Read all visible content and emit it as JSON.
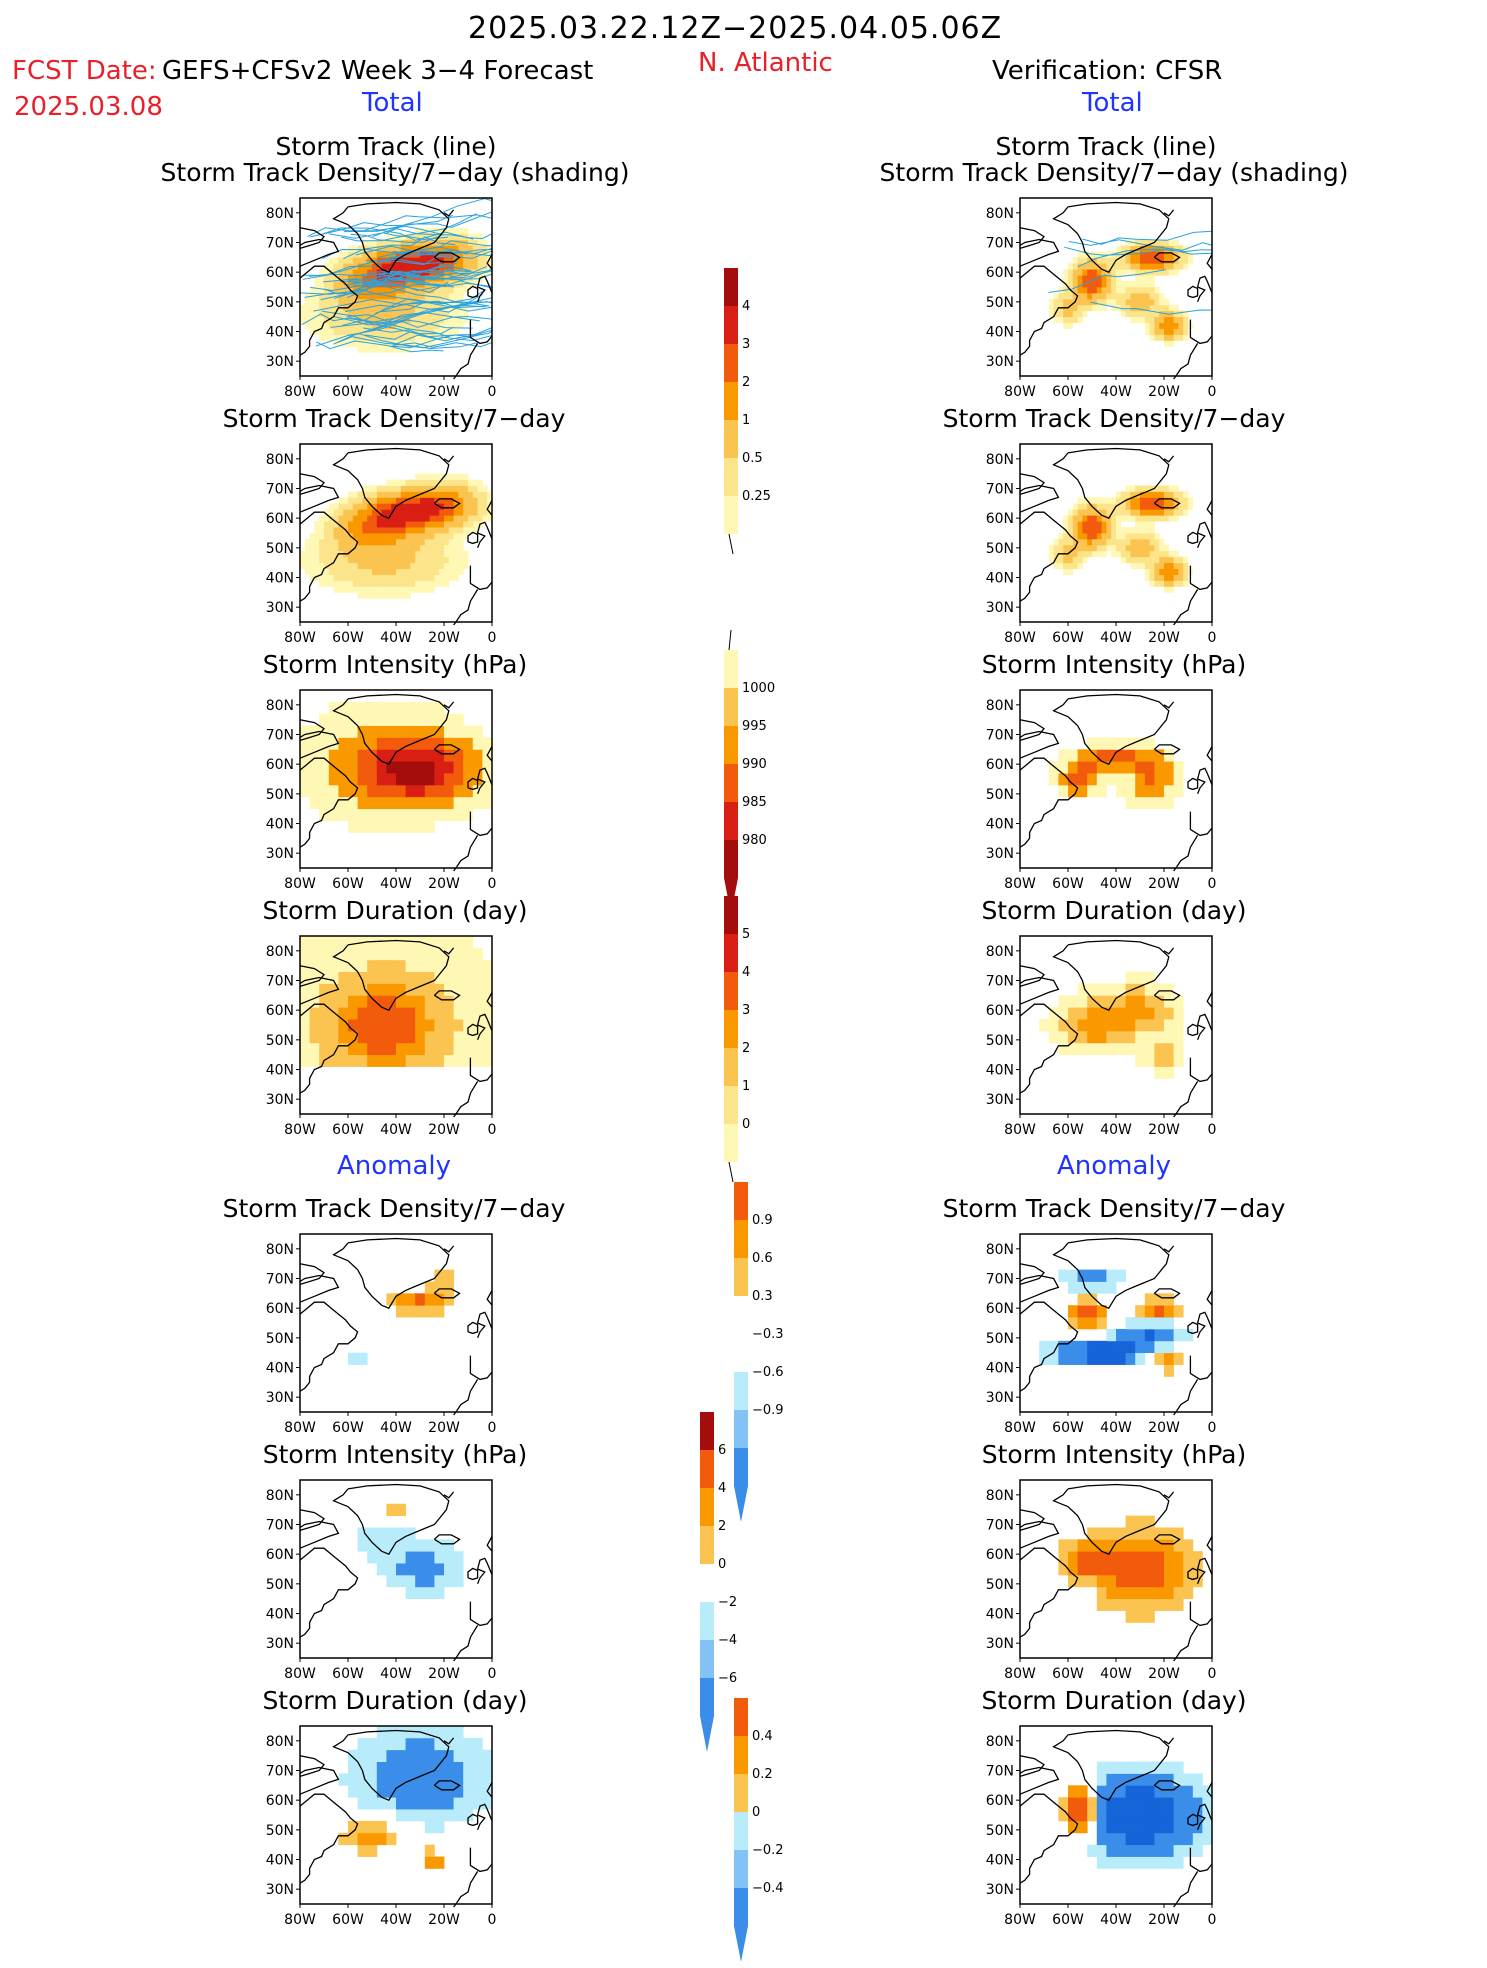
{
  "header": {
    "period": "2025.03.22.12Z−2025.04.05.06Z",
    "fcst_date_label": "FCST Date:",
    "fcst_date": "2025.03.08",
    "forecast_label": "GEFS+CFSv2 Week 3−4 Forecast",
    "region": "N. Atlantic",
    "verification": "Verification: CFSR",
    "total_left": "Total",
    "total_right": "Total",
    "anomaly_left": "Anomaly",
    "anomaly_right": "Anomaly"
  },
  "panel_titles": {
    "track_line": "Storm Track (line)",
    "track_shading": "Storm Track Density/7−day (shading)",
    "density": "Storm Track Density/7−day",
    "intensity": "Storm Intensity (hPa)",
    "duration": "Storm Duration (day)"
  },
  "colors": {
    "c025": "#fff7b4",
    "c05": "#fce48a",
    "c1": "#fbc450",
    "c2": "#fa9800",
    "c3": "#f25a0c",
    "c4": "#d91f14",
    "c5": "#a50d0d",
    "cneg1": "#b8ecfb",
    "cneg2": "#82c2f5",
    "cneg3": "#3a8de8",
    "cneg4": "#1565d8",
    "track_line": "#2aa3df",
    "land_outline": "#000000"
  },
  "chart_data": [
    {
      "type": "heatmap",
      "title": "Storm Track (line) / Storm Track Density/7−day (shading)",
      "column": "Forecast Total",
      "xticks": [
        "80W",
        "60W",
        "40W",
        "20W",
        "0"
      ],
      "yticks": [
        "80N",
        "70N",
        "60N",
        "50N",
        "40N",
        "30N"
      ],
      "xlim": [
        -80,
        0
      ],
      "ylim": [
        25,
        85
      ],
      "colorbar_levels": [
        0.25,
        0.5,
        1,
        2,
        3,
        4
      ]
    },
    {
      "type": "heatmap",
      "title": "Storm Track (line) / Storm Track Density/7−day (shading)",
      "column": "Verification Total",
      "xticks": [
        "80W",
        "60W",
        "40W",
        "20W",
        "0"
      ],
      "yticks": [
        "80N",
        "70N",
        "60N",
        "50N",
        "40N",
        "30N"
      ],
      "colorbar_levels": [
        0.25,
        0.5,
        1,
        2,
        3,
        4
      ]
    },
    {
      "type": "heatmap",
      "title": "Storm Track Density/7−day",
      "column": "Forecast Total",
      "xticks": [
        "80W",
        "60W",
        "40W",
        "20W",
        "0"
      ],
      "yticks": [
        "80N",
        "70N",
        "60N",
        "50N",
        "40N",
        "30N"
      ]
    },
    {
      "type": "heatmap",
      "title": "Storm Track Density/7−day",
      "column": "Verification Total",
      "xticks": [
        "80W",
        "60W",
        "40W",
        "20W",
        "0"
      ],
      "yticks": [
        "80N",
        "70N",
        "60N",
        "50N",
        "40N",
        "30N"
      ]
    },
    {
      "type": "heatmap",
      "title": "Storm Intensity (hPa)",
      "column": "Forecast Total",
      "colorbar_levels": [
        1000,
        995,
        990,
        985,
        980
      ],
      "xticks": [
        "80W",
        "60W",
        "40W",
        "20W",
        "0"
      ],
      "yticks": [
        "80N",
        "70N",
        "60N",
        "50N",
        "40N",
        "30N"
      ]
    },
    {
      "type": "heatmap",
      "title": "Storm Intensity (hPa)",
      "column": "Verification Total",
      "colorbar_levels": [
        1000,
        995,
        990,
        985,
        980
      ],
      "xticks": [
        "80W",
        "60W",
        "40W",
        "20W",
        "0"
      ],
      "yticks": [
        "80N",
        "70N",
        "60N",
        "50N",
        "40N",
        "30N"
      ]
    },
    {
      "type": "heatmap",
      "title": "Storm Duration (day)",
      "column": "Forecast Total",
      "colorbar_levels": [
        0,
        1,
        2,
        3,
        4,
        5
      ],
      "xticks": [
        "80W",
        "60W",
        "40W",
        "20W",
        "0"
      ],
      "yticks": [
        "80N",
        "70N",
        "60N",
        "50N",
        "40N",
        "30N"
      ]
    },
    {
      "type": "heatmap",
      "title": "Storm Duration (day)",
      "column": "Verification Total",
      "colorbar_levels": [
        0,
        1,
        2,
        3,
        4,
        5
      ],
      "xticks": [
        "80W",
        "60W",
        "40W",
        "20W",
        "0"
      ],
      "yticks": [
        "80N",
        "70N",
        "60N",
        "50N",
        "40N",
        "30N"
      ]
    },
    {
      "type": "heatmap",
      "title": "Storm Track Density/7−day",
      "column": "Forecast Anomaly",
      "colorbar_levels": [
        0.9,
        0.6,
        0.3,
        -0.3,
        -0.6,
        -0.9
      ],
      "xticks": [
        "80W",
        "60W",
        "40W",
        "20W",
        "0"
      ],
      "yticks": [
        "80N",
        "70N",
        "60N",
        "50N",
        "40N",
        "30N"
      ]
    },
    {
      "type": "heatmap",
      "title": "Storm Track Density/7−day",
      "column": "Verification Anomaly",
      "colorbar_levels": [
        0.9,
        0.6,
        0.3,
        -0.3,
        -0.6,
        -0.9
      ],
      "xticks": [
        "80W",
        "60W",
        "40W",
        "20W",
        "0"
      ],
      "yticks": [
        "80N",
        "70N",
        "60N",
        "50N",
        "40N",
        "30N"
      ]
    },
    {
      "type": "heatmap",
      "title": "Storm Intensity (hPa)",
      "column": "Forecast Anomaly",
      "colorbar_levels": [
        6,
        4,
        2,
        0,
        -2,
        -4,
        -6
      ],
      "xticks": [
        "80W",
        "60W",
        "40W",
        "20W",
        "0"
      ],
      "yticks": [
        "80N",
        "70N",
        "60N",
        "50N",
        "40N",
        "30N"
      ]
    },
    {
      "type": "heatmap",
      "title": "Storm Intensity (hPa)",
      "column": "Verification Anomaly",
      "colorbar_levels": [
        6,
        4,
        2,
        0,
        -2,
        -4,
        -6
      ],
      "xticks": [
        "80W",
        "60W",
        "40W",
        "20W",
        "0"
      ],
      "yticks": [
        "80N",
        "70N",
        "60N",
        "50N",
        "40N",
        "30N"
      ]
    },
    {
      "type": "heatmap",
      "title": "Storm Duration (day)",
      "column": "Forecast Anomaly",
      "colorbar_levels": [
        0.4,
        0.2,
        0,
        -0.2,
        -0.4
      ],
      "xticks": [
        "80W",
        "60W",
        "40W",
        "20W",
        "0"
      ],
      "yticks": [
        "80N",
        "70N",
        "60N",
        "50N",
        "40N",
        "30N"
      ]
    },
    {
      "type": "heatmap",
      "title": "Storm Duration (day)",
      "column": "Verification Anomaly",
      "colorbar_levels": [
        0.4,
        0.2,
        0,
        -0.2,
        -0.4
      ],
      "xticks": [
        "80W",
        "60W",
        "40W",
        "20W",
        "0"
      ],
      "yticks": [
        "80N",
        "70N",
        "60N",
        "50N",
        "40N",
        "30N"
      ]
    }
  ],
  "colorbars": {
    "density_total": [
      "4",
      "3",
      "2",
      "1",
      "0.5",
      "0.25"
    ],
    "intensity_total": [
      "1000",
      "995",
      "990",
      "985",
      "980"
    ],
    "duration_total": [
      "5",
      "4",
      "3",
      "2",
      "1",
      "0"
    ],
    "density_anom": [
      "0.9",
      "0.6",
      "0.3",
      "−0.3",
      "−0.6",
      "−0.9"
    ],
    "intensity_anom": [
      "6",
      "4",
      "2",
      "0",
      "−2",
      "−4",
      "−6"
    ],
    "duration_anom": [
      "0.4",
      "0.2",
      "0",
      "−0.2",
      "−0.4"
    ]
  },
  "axis": {
    "xticks": [
      "80W",
      "60W",
      "40W",
      "20W",
      "0"
    ],
    "yticks": [
      "80N",
      "70N",
      "60N",
      "50N",
      "40N",
      "30N"
    ]
  }
}
